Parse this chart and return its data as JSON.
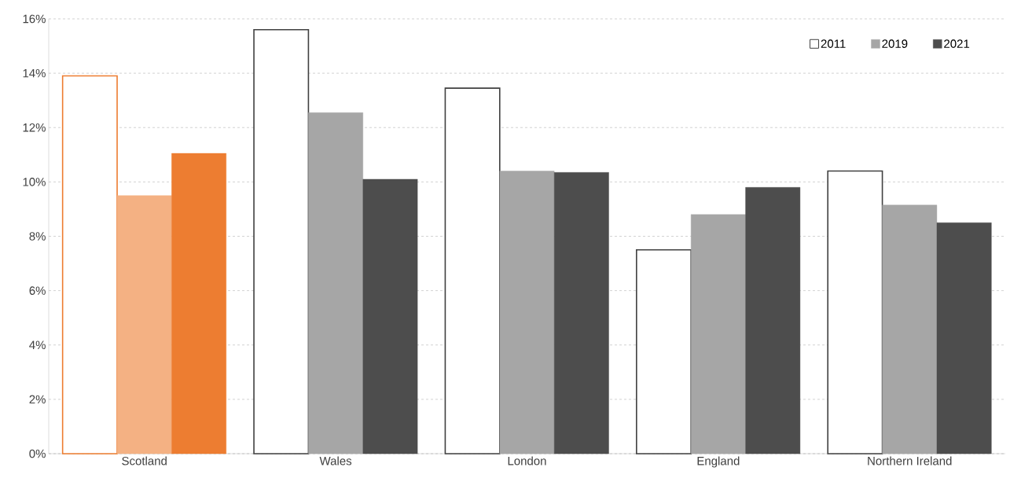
{
  "chart_data": {
    "type": "bar",
    "categories": [
      "Scotland",
      "Wales",
      "London",
      "England",
      "Northern Ireland"
    ],
    "series": [
      {
        "name": "2011",
        "color": "#ffffff",
        "colors": [
          "#ffffff",
          "#ffffff",
          "#ffffff",
          "#ffffff",
          "#ffffff"
        ],
        "values": [
          13.9,
          15.6,
          13.45,
          7.5,
          10.4
        ]
      },
      {
        "name": "2019",
        "color": "#a6a6a6",
        "colors": [
          "#f4b183",
          "#a6a6a6",
          "#a6a6a6",
          "#a6a6a6",
          "#a6a6a6"
        ],
        "values": [
          9.5,
          12.55,
          10.4,
          8.8,
          9.15
        ]
      },
      {
        "name": "2021",
        "color": "#4d4d4d",
        "colors": [
          "#ed7d31",
          "#4d4d4d",
          "#4d4d4d",
          "#4d4d4d",
          "#4d4d4d"
        ],
        "values": [
          11.05,
          10.1,
          10.35,
          9.8,
          8.5
        ]
      }
    ],
    "ylim": [
      0,
      16
    ],
    "yticks": [
      {
        "value": 0,
        "label": "0%"
      },
      {
        "value": 2,
        "label": "2%"
      },
      {
        "value": 4,
        "label": "4%"
      },
      {
        "value": 6,
        "label": "6%"
      },
      {
        "value": 8,
        "label": "8%"
      },
      {
        "value": 10,
        "label": "10%"
      },
      {
        "value": 12,
        "label": "12%"
      },
      {
        "value": 14,
        "label": "14%"
      },
      {
        "value": 16,
        "label": "16%"
      }
    ],
    "grid": "y",
    "legend": "top right"
  }
}
